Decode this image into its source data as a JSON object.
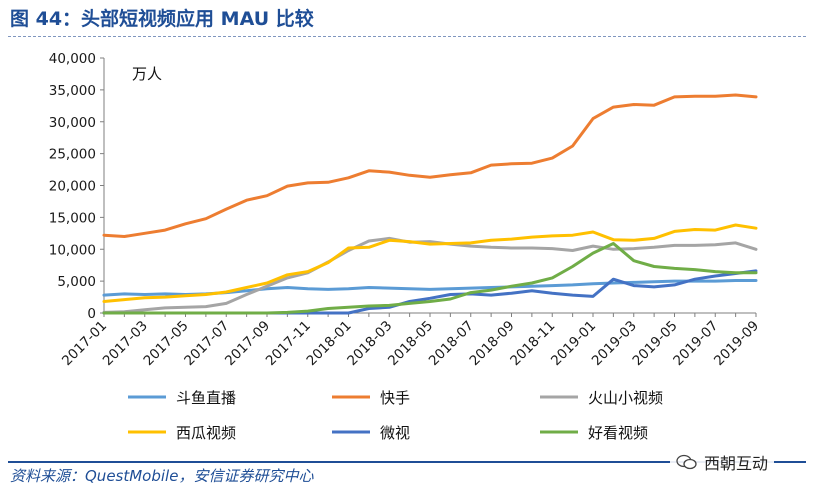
{
  "header": {
    "title": "图 44：头部短视频应用 MAU 比较"
  },
  "footer": {
    "source": "资料来源：QuestMobile，安信证券研究中心",
    "watermark": "西朝互动"
  },
  "chart_data": {
    "type": "line",
    "title": "头部短视频应用 MAU 比较",
    "unit": "万人",
    "xlabel": "",
    "ylabel": "",
    "ylim": [
      0,
      40000
    ],
    "yticks": [
      0,
      5000,
      10000,
      15000,
      20000,
      25000,
      30000,
      35000,
      40000
    ],
    "ytick_labels": [
      "0",
      "5,000",
      "10,000",
      "15,000",
      "20,000",
      "25,000",
      "30,000",
      "35,000",
      "40,000"
    ],
    "legend_position": "bottom",
    "x": [
      "2017-01",
      "2017-02",
      "2017-03",
      "2017-04",
      "2017-05",
      "2017-06",
      "2017-07",
      "2017-08",
      "2017-09",
      "2017-10",
      "2017-11",
      "2017-12",
      "2018-01",
      "2018-02",
      "2018-03",
      "2018-04",
      "2018-05",
      "2018-06",
      "2018-07",
      "2018-08",
      "2018-09",
      "2018-10",
      "2018-11",
      "2018-12",
      "2019-01",
      "2019-02",
      "2019-03",
      "2019-04",
      "2019-05",
      "2019-06",
      "2019-07",
      "2019-08",
      "2019-09"
    ],
    "xtick_labels": [
      "2017-01",
      "2017-03",
      "2017-05",
      "2017-07",
      "2017-09",
      "2017-11",
      "2018-01",
      "2018-03",
      "2018-05",
      "2018-07",
      "2018-09",
      "2018-11",
      "2019-01",
      "2019-03",
      "2019-05",
      "2019-07",
      "2019-09"
    ],
    "series": [
      {
        "name": "斗鱼直播",
        "color": "#5b9bd5",
        "values": [
          2800,
          3000,
          2900,
          3000,
          2900,
          3000,
          3200,
          3500,
          3800,
          4000,
          3800,
          3700,
          3800,
          4000,
          3900,
          3800,
          3700,
          3800,
          3900,
          4000,
          4100,
          4200,
          4300,
          4400,
          4600,
          4700,
          4800,
          4900,
          5000,
          5000,
          5000,
          5100,
          5100
        ]
      },
      {
        "name": "快手",
        "color": "#ed7d31",
        "values": [
          12200,
          12000,
          12500,
          13000,
          14000,
          14800,
          16300,
          17700,
          18400,
          19900,
          20400,
          20500,
          21200,
          22300,
          22100,
          21600,
          21300,
          21700,
          22000,
          23200,
          23400,
          23500,
          24300,
          26200,
          30500,
          32300,
          32700,
          32600,
          33900,
          34000,
          34000,
          34200,
          33900
        ]
      },
      {
        "name": "火山小视频",
        "color": "#a5a5a5",
        "values": [
          100,
          200,
          500,
          800,
          900,
          1000,
          1500,
          2900,
          4200,
          5500,
          6300,
          8000,
          9800,
          11300,
          11700,
          11100,
          11200,
          10800,
          10500,
          10300,
          10200,
          10200,
          10100,
          9800,
          10500,
          10000,
          10100,
          10300,
          10600,
          10600,
          10700,
          11000,
          10000
        ]
      },
      {
        "name": "西瓜视频",
        "color": "#ffc000",
        "values": [
          1800,
          2100,
          2400,
          2500,
          2700,
          2900,
          3300,
          4000,
          4700,
          6000,
          6500,
          7900,
          10200,
          10300,
          11400,
          11200,
          10800,
          10900,
          11000,
          11400,
          11600,
          11900,
          12100,
          12200,
          12700,
          11500,
          11400,
          11700,
          12800,
          13100,
          13000,
          13800,
          13300
        ]
      },
      {
        "name": "微视",
        "color": "#4472c4",
        "values": [
          0,
          0,
          0,
          0,
          0,
          0,
          0,
          0,
          0,
          0,
          0,
          0,
          0,
          700,
          900,
          1800,
          2300,
          2900,
          3000,
          2800,
          3100,
          3500,
          3100,
          2800,
          2600,
          5300,
          4300,
          4100,
          4400,
          5300,
          5800,
          6200,
          6600
        ]
      },
      {
        "name": "好看视频",
        "color": "#70ad47",
        "values": [
          0,
          0,
          0,
          0,
          0,
          0,
          0,
          0,
          0,
          100,
          300,
          700,
          900,
          1100,
          1200,
          1500,
          1800,
          2200,
          3200,
          3600,
          4200,
          4700,
          5500,
          7300,
          9400,
          10900,
          8200,
          7300,
          7000,
          6800,
          6500,
          6300,
          6300
        ]
      }
    ]
  }
}
